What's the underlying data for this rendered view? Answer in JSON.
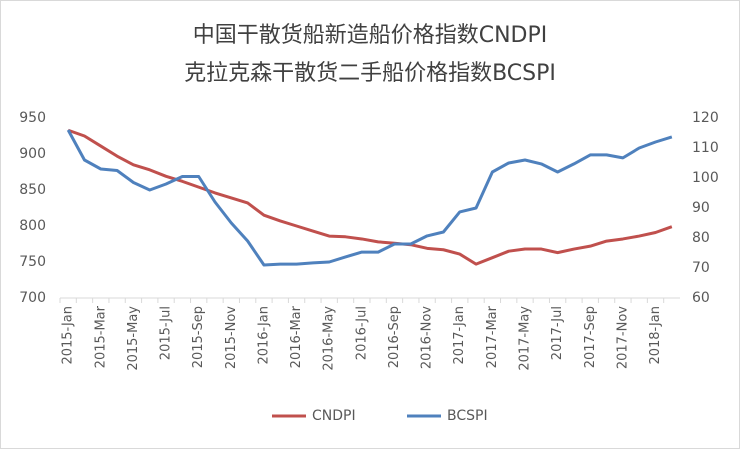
{
  "chart_data": {
    "type": "line",
    "title": [
      "中国干散货船新造船价格指数CNDPI",
      "克拉克森干散货二手船价格指数BCSPI"
    ],
    "categories": [
      "2015-Jan",
      null,
      "2015-Mar",
      null,
      "2015-May",
      null,
      "2015-Jul",
      null,
      "2015-Sep",
      null,
      "2015-Nov",
      null,
      "2016-Jan",
      null,
      "2016-Mar",
      null,
      "2016-May",
      null,
      "2016-Jul",
      null,
      "2016-Sep",
      null,
      "2016-Nov",
      null,
      "2017-Jan",
      null,
      "2017-Mar",
      null,
      "2017-May",
      null,
      "2017-Jul",
      null,
      "2017-Sep",
      null,
      "2017-Nov",
      null,
      "2018-Jan",
      null
    ],
    "series": [
      {
        "name": "CNDPI",
        "color": "#c0504d",
        "values": [
          933,
          925,
          911,
          897,
          885,
          878,
          869,
          862,
          854,
          846,
          839,
          832,
          815,
          807,
          800,
          793,
          786,
          785,
          782,
          778,
          776,
          774,
          769,
          767,
          761,
          747,
          756,
          765,
          768,
          768,
          763,
          768,
          772,
          779,
          782,
          786,
          791,
          799
        ]
      },
      {
        "name": "BCSPI",
        "color": "#4f81bd",
        "axis": "y2",
        "values": [
          116,
          106,
          103,
          102.5,
          98.5,
          96,
          98,
          100.5,
          100.5,
          92,
          85,
          79,
          71,
          71.3,
          71.3,
          71.7,
          72,
          73.7,
          75.3,
          75.3,
          78,
          78,
          80.7,
          82,
          88.7,
          90,
          102,
          105,
          106,
          104.7,
          102,
          104.7,
          107.7,
          107.7,
          106.7,
          110,
          112,
          113.7
        ]
      }
    ],
    "ylim": [
      700,
      950
    ],
    "yticks": [
      700,
      750,
      800,
      850,
      900,
      950
    ],
    "y2lim": [
      60,
      120
    ],
    "y2ticks": [
      60,
      70,
      80,
      90,
      100,
      110,
      120
    ],
    "legend": "bottom"
  }
}
